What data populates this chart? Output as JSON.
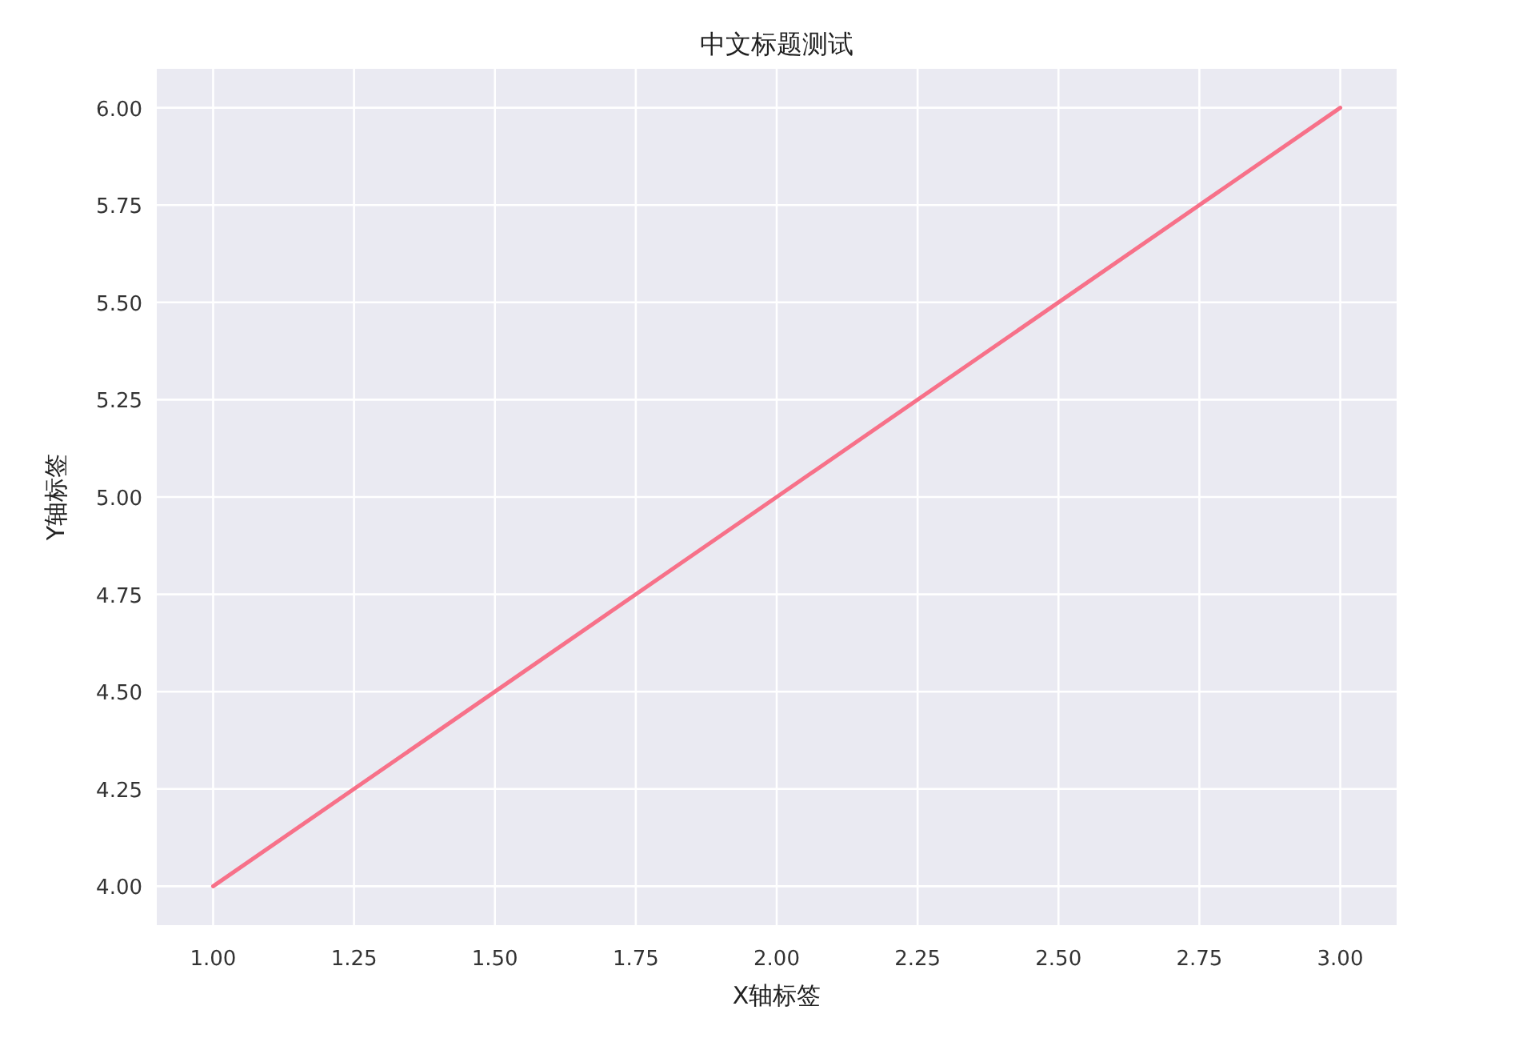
{
  "chart_data": {
    "type": "line",
    "title": "中文标题测试",
    "xlabel": "X轴标签",
    "ylabel": "Y轴标签",
    "x": [
      1,
      2,
      3
    ],
    "series": [
      {
        "color": "#f77189",
        "values": [
          4,
          5,
          6
        ]
      }
    ],
    "xlim": [
      0.9,
      3.1
    ],
    "ylim": [
      3.9,
      6.1
    ],
    "xticks": [
      {
        "value": 1,
        "label": "1.00"
      },
      {
        "value": 1.25,
        "label": "1.25"
      },
      {
        "value": 1.5,
        "label": "1.50"
      },
      {
        "value": 1.75,
        "label": "1.75"
      },
      {
        "value": 2,
        "label": "2.00"
      },
      {
        "value": 2.25,
        "label": "2.25"
      },
      {
        "value": 2.5,
        "label": "2.50"
      },
      {
        "value": 2.75,
        "label": "2.75"
      },
      {
        "value": 3,
        "label": "3.00"
      }
    ],
    "yticks": [
      {
        "value": 4,
        "label": "4.00"
      },
      {
        "value": 4.25,
        "label": "4.25"
      },
      {
        "value": 4.5,
        "label": "4.50"
      },
      {
        "value": 4.75,
        "label": "4.75"
      },
      {
        "value": 5,
        "label": "5.00"
      },
      {
        "value": 5.25,
        "label": "5.25"
      },
      {
        "value": 5.5,
        "label": "5.50"
      },
      {
        "value": 5.75,
        "label": "5.75"
      },
      {
        "value": 6,
        "label": "6.00"
      }
    ],
    "grid": true
  }
}
